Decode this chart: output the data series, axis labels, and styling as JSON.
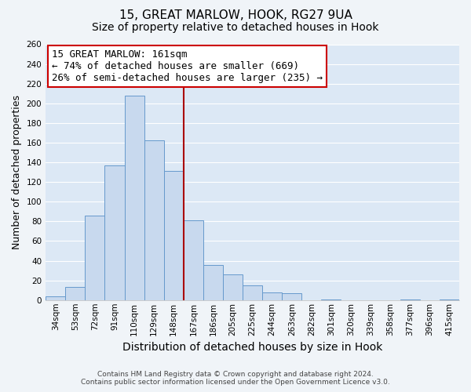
{
  "title": "15, GREAT MARLOW, HOOK, RG27 9UA",
  "subtitle": "Size of property relative to detached houses in Hook",
  "xlabel": "Distribution of detached houses by size in Hook",
  "ylabel": "Number of detached properties",
  "categories": [
    "34sqm",
    "53sqm",
    "72sqm",
    "91sqm",
    "110sqm",
    "129sqm",
    "148sqm",
    "167sqm",
    "186sqm",
    "205sqm",
    "225sqm",
    "244sqm",
    "263sqm",
    "282sqm",
    "301sqm",
    "320sqm",
    "339sqm",
    "358sqm",
    "377sqm",
    "396sqm",
    "415sqm"
  ],
  "values": [
    4,
    13,
    86,
    137,
    208,
    162,
    131,
    81,
    36,
    26,
    15,
    8,
    7,
    0,
    1,
    0,
    0,
    0,
    1,
    0,
    1
  ],
  "bar_color": "#c8d9ee",
  "bar_edge_color": "#6699cc",
  "vline_color": "#aa0000",
  "vline_index": 7,
  "ylim": [
    0,
    260
  ],
  "yticks": [
    0,
    20,
    40,
    60,
    80,
    100,
    120,
    140,
    160,
    180,
    200,
    220,
    240,
    260
  ],
  "annotation_title": "15 GREAT MARLOW: 161sqm",
  "annotation_line1": "← 74% of detached houses are smaller (669)",
  "annotation_line2": "26% of semi-detached houses are larger (235) →",
  "annotation_box_color": "#ffffff",
  "annotation_box_edge": "#cc0000",
  "footer_line1": "Contains HM Land Registry data © Crown copyright and database right 2024.",
  "footer_line2": "Contains public sector information licensed under the Open Government Licence v3.0.",
  "plot_bg_color": "#dce8f5",
  "fig_bg_color": "#f0f4f8",
  "grid_color": "#ffffff",
  "title_fontsize": 11,
  "subtitle_fontsize": 10,
  "xlabel_fontsize": 10,
  "ylabel_fontsize": 9,
  "tick_fontsize": 7.5,
  "annotation_fontsize": 9,
  "footer_fontsize": 6.5
}
